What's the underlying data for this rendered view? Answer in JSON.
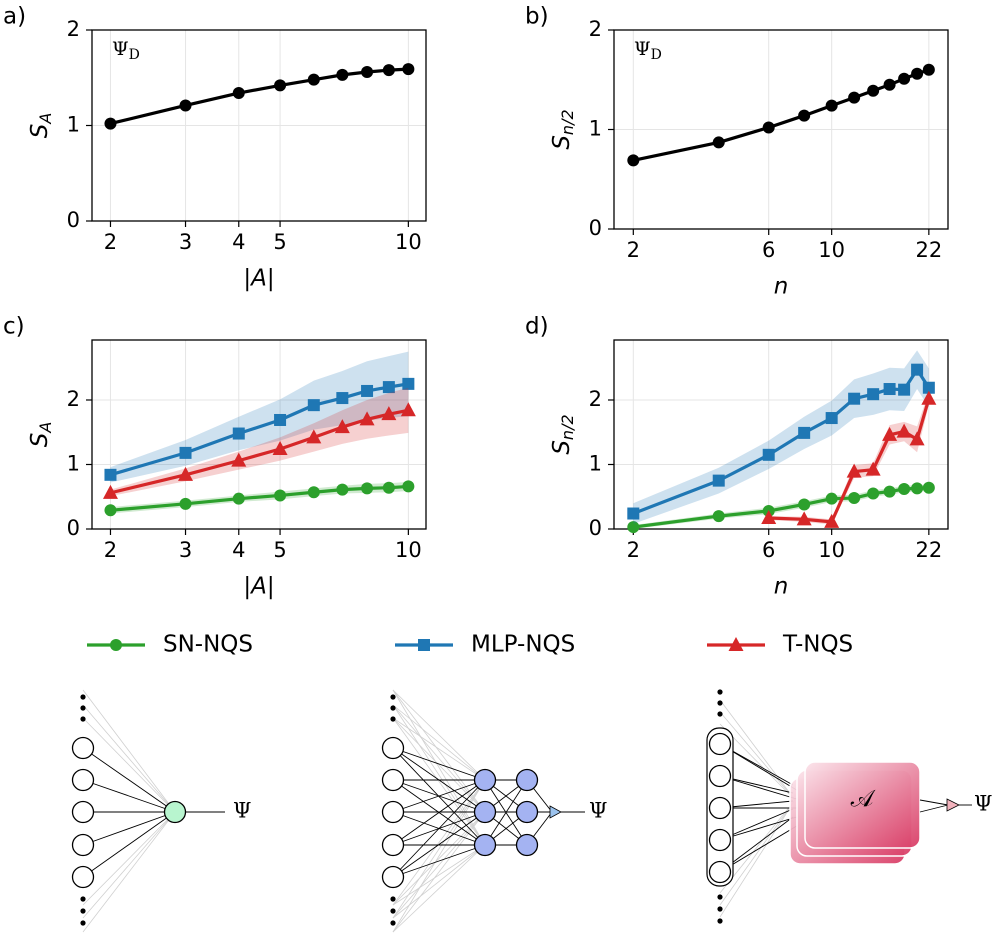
{
  "chart_data": [
    {
      "type": "line",
      "panel_label": "a)",
      "annotation": [
        "Ψ",
        "D"
      ],
      "xlabel": "|A|",
      "ylabel": [
        "S",
        "A"
      ],
      "xscale": "log",
      "xlim": [
        1.81,
        11.0
      ],
      "xticks": [
        2,
        3,
        4,
        5,
        10
      ],
      "ylim": [
        0,
        2
      ],
      "yticks": [
        0,
        1,
        2
      ],
      "grid": true,
      "x": [
        2,
        3,
        4,
        5,
        6,
        7,
        8,
        9,
        10
      ],
      "series": [
        {
          "color": "#000000",
          "marker": "circle",
          "values": [
            1.02,
            1.21,
            1.34,
            1.42,
            1.48,
            1.53,
            1.56,
            1.58,
            1.59
          ]
        }
      ]
    },
    {
      "type": "line",
      "panel_label": "b)",
      "annotation": [
        "Ψ",
        "D"
      ],
      "xlabel": "n",
      "ylabel": [
        "S",
        "n/2"
      ],
      "xscale": "log",
      "xlim": [
        1.71,
        25.7
      ],
      "xticks": [
        2,
        6,
        10,
        22
      ],
      "ylim": [
        0,
        2
      ],
      "yticks": [
        0,
        1,
        2
      ],
      "grid": true,
      "x": [
        2,
        4,
        6,
        8,
        10,
        12,
        14,
        16,
        18,
        20,
        22
      ],
      "series": [
        {
          "color": "#000000",
          "marker": "circle",
          "values": [
            0.69,
            0.87,
            1.02,
            1.14,
            1.24,
            1.32,
            1.39,
            1.45,
            1.51,
            1.56,
            1.6
          ]
        }
      ]
    },
    {
      "type": "line",
      "panel_label": "c)",
      "xlabel": "|A|",
      "ylabel": [
        "S",
        "A"
      ],
      "xscale": "log",
      "xlim": [
        1.81,
        11.0
      ],
      "xticks": [
        2,
        3,
        4,
        5,
        10
      ],
      "ylim": [
        0,
        2.93
      ],
      "yticks": [
        0,
        1,
        2
      ],
      "grid": true,
      "x": [
        2,
        3,
        4,
        5,
        6,
        7,
        8,
        9,
        10
      ],
      "series": [
        {
          "name": "SN-NQS",
          "color": "#2ca02c",
          "marker": "circle",
          "values": [
            0.29,
            0.39,
            0.47,
            0.52,
            0.57,
            0.61,
            0.63,
            0.64,
            0.66
          ],
          "errors": [
            0.05,
            0.05,
            0.05,
            0.06,
            0.06,
            0.06,
            0.07,
            0.07,
            0.07
          ]
        },
        {
          "name": "MLP-NQS",
          "color": "#1f77b4",
          "marker": "square",
          "values": [
            0.84,
            1.18,
            1.48,
            1.69,
            1.92,
            2.03,
            2.14,
            2.2,
            2.25
          ],
          "errors": [
            0.12,
            0.2,
            0.26,
            0.32,
            0.38,
            0.42,
            0.46,
            0.48,
            0.5
          ]
        },
        {
          "name": "T-NQS",
          "color": "#d62728",
          "marker": "triangle",
          "values": [
            0.56,
            0.84,
            1.06,
            1.24,
            1.42,
            1.58,
            1.7,
            1.78,
            1.84
          ],
          "errors": [
            0.05,
            0.1,
            0.14,
            0.18,
            0.22,
            0.26,
            0.3,
            0.33,
            0.35
          ]
        }
      ]
    },
    {
      "type": "line",
      "panel_label": "d)",
      "xlabel": "n",
      "ylabel": [
        "S",
        "n/2"
      ],
      "xscale": "log",
      "xlim": [
        1.71,
        25.7
      ],
      "xticks": [
        2,
        6,
        10,
        22
      ],
      "ylim": [
        0,
        2.93
      ],
      "yticks": [
        0,
        1,
        2
      ],
      "grid": true,
      "x": [
        2,
        4,
        6,
        8,
        10,
        12,
        14,
        16,
        18,
        20,
        22
      ],
      "series": [
        {
          "color": "#2ca02c",
          "marker": "circle",
          "values": [
            0.03,
            0.2,
            0.28,
            0.38,
            0.47,
            0.48,
            0.55,
            0.58,
            0.62,
            0.63,
            0.64
          ],
          "errors": [
            0.03,
            0.04,
            0.05,
            0.05,
            0.05,
            0.05,
            0.05,
            0.05,
            0.05,
            0.05,
            0.05
          ]
        },
        {
          "color": "#1f77b4",
          "marker": "square",
          "values": [
            0.24,
            0.75,
            1.15,
            1.49,
            1.72,
            2.02,
            2.09,
            2.17,
            2.16,
            2.47,
            2.19
          ],
          "errors": [
            0.16,
            0.2,
            0.22,
            0.25,
            0.27,
            0.3,
            0.32,
            0.33,
            0.33,
            0.3,
            0.3
          ]
        },
        {
          "color": "#d62728",
          "marker": "triangle",
          "values": [
            null,
            null,
            0.17,
            0.15,
            0.11,
            0.89,
            0.92,
            1.46,
            1.51,
            1.39,
            2.02
          ],
          "errors": [
            null,
            null,
            0.03,
            0.04,
            0.04,
            0.1,
            0.1,
            0.15,
            0.15,
            0.2,
            0.1
          ]
        }
      ]
    }
  ],
  "diagrams": [
    {
      "output": "Ψ"
    },
    {
      "output": "Ψ"
    },
    {
      "block": "𝒜",
      "output": "Ψ"
    }
  ]
}
